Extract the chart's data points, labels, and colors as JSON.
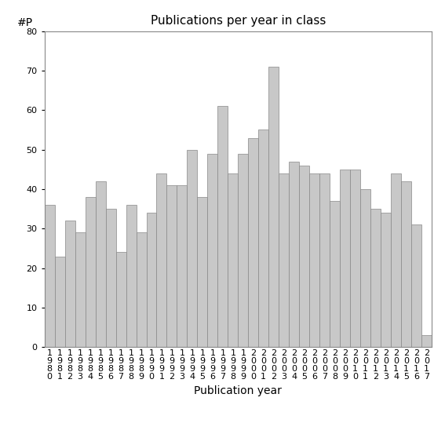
{
  "title": "Publications per year in class",
  "xlabel": "Publication year",
  "ylabel": "#P",
  "years": [
    1980,
    1981,
    1982,
    1983,
    1984,
    1985,
    1986,
    1987,
    1988,
    1989,
    1990,
    1991,
    1992,
    1993,
    1994,
    1995,
    1996,
    1997,
    1998,
    1999,
    2000,
    2001,
    2002,
    2003,
    2004,
    2005,
    2006,
    2007,
    2008,
    2009,
    2010,
    2011,
    2012,
    2013,
    2014,
    2015,
    2016,
    2017
  ],
  "values": [
    36,
    23,
    32,
    29,
    38,
    42,
    35,
    24,
    36,
    29,
    34,
    44,
    41,
    41,
    50,
    38,
    49,
    61,
    44,
    49,
    53,
    55,
    71,
    44,
    47,
    46,
    44,
    44,
    37,
    45,
    45,
    40,
    35,
    34,
    44,
    42,
    31,
    3
  ],
  "bar_color": "#c8c8c8",
  "bar_edge_color": "#888888",
  "ylim": [
    0,
    80
  ],
  "yticks": [
    0,
    10,
    20,
    30,
    40,
    50,
    60,
    70,
    80
  ],
  "bg_color": "#ffffff",
  "title_fontsize": 11,
  "axis_label_fontsize": 10,
  "tick_fontsize": 8
}
